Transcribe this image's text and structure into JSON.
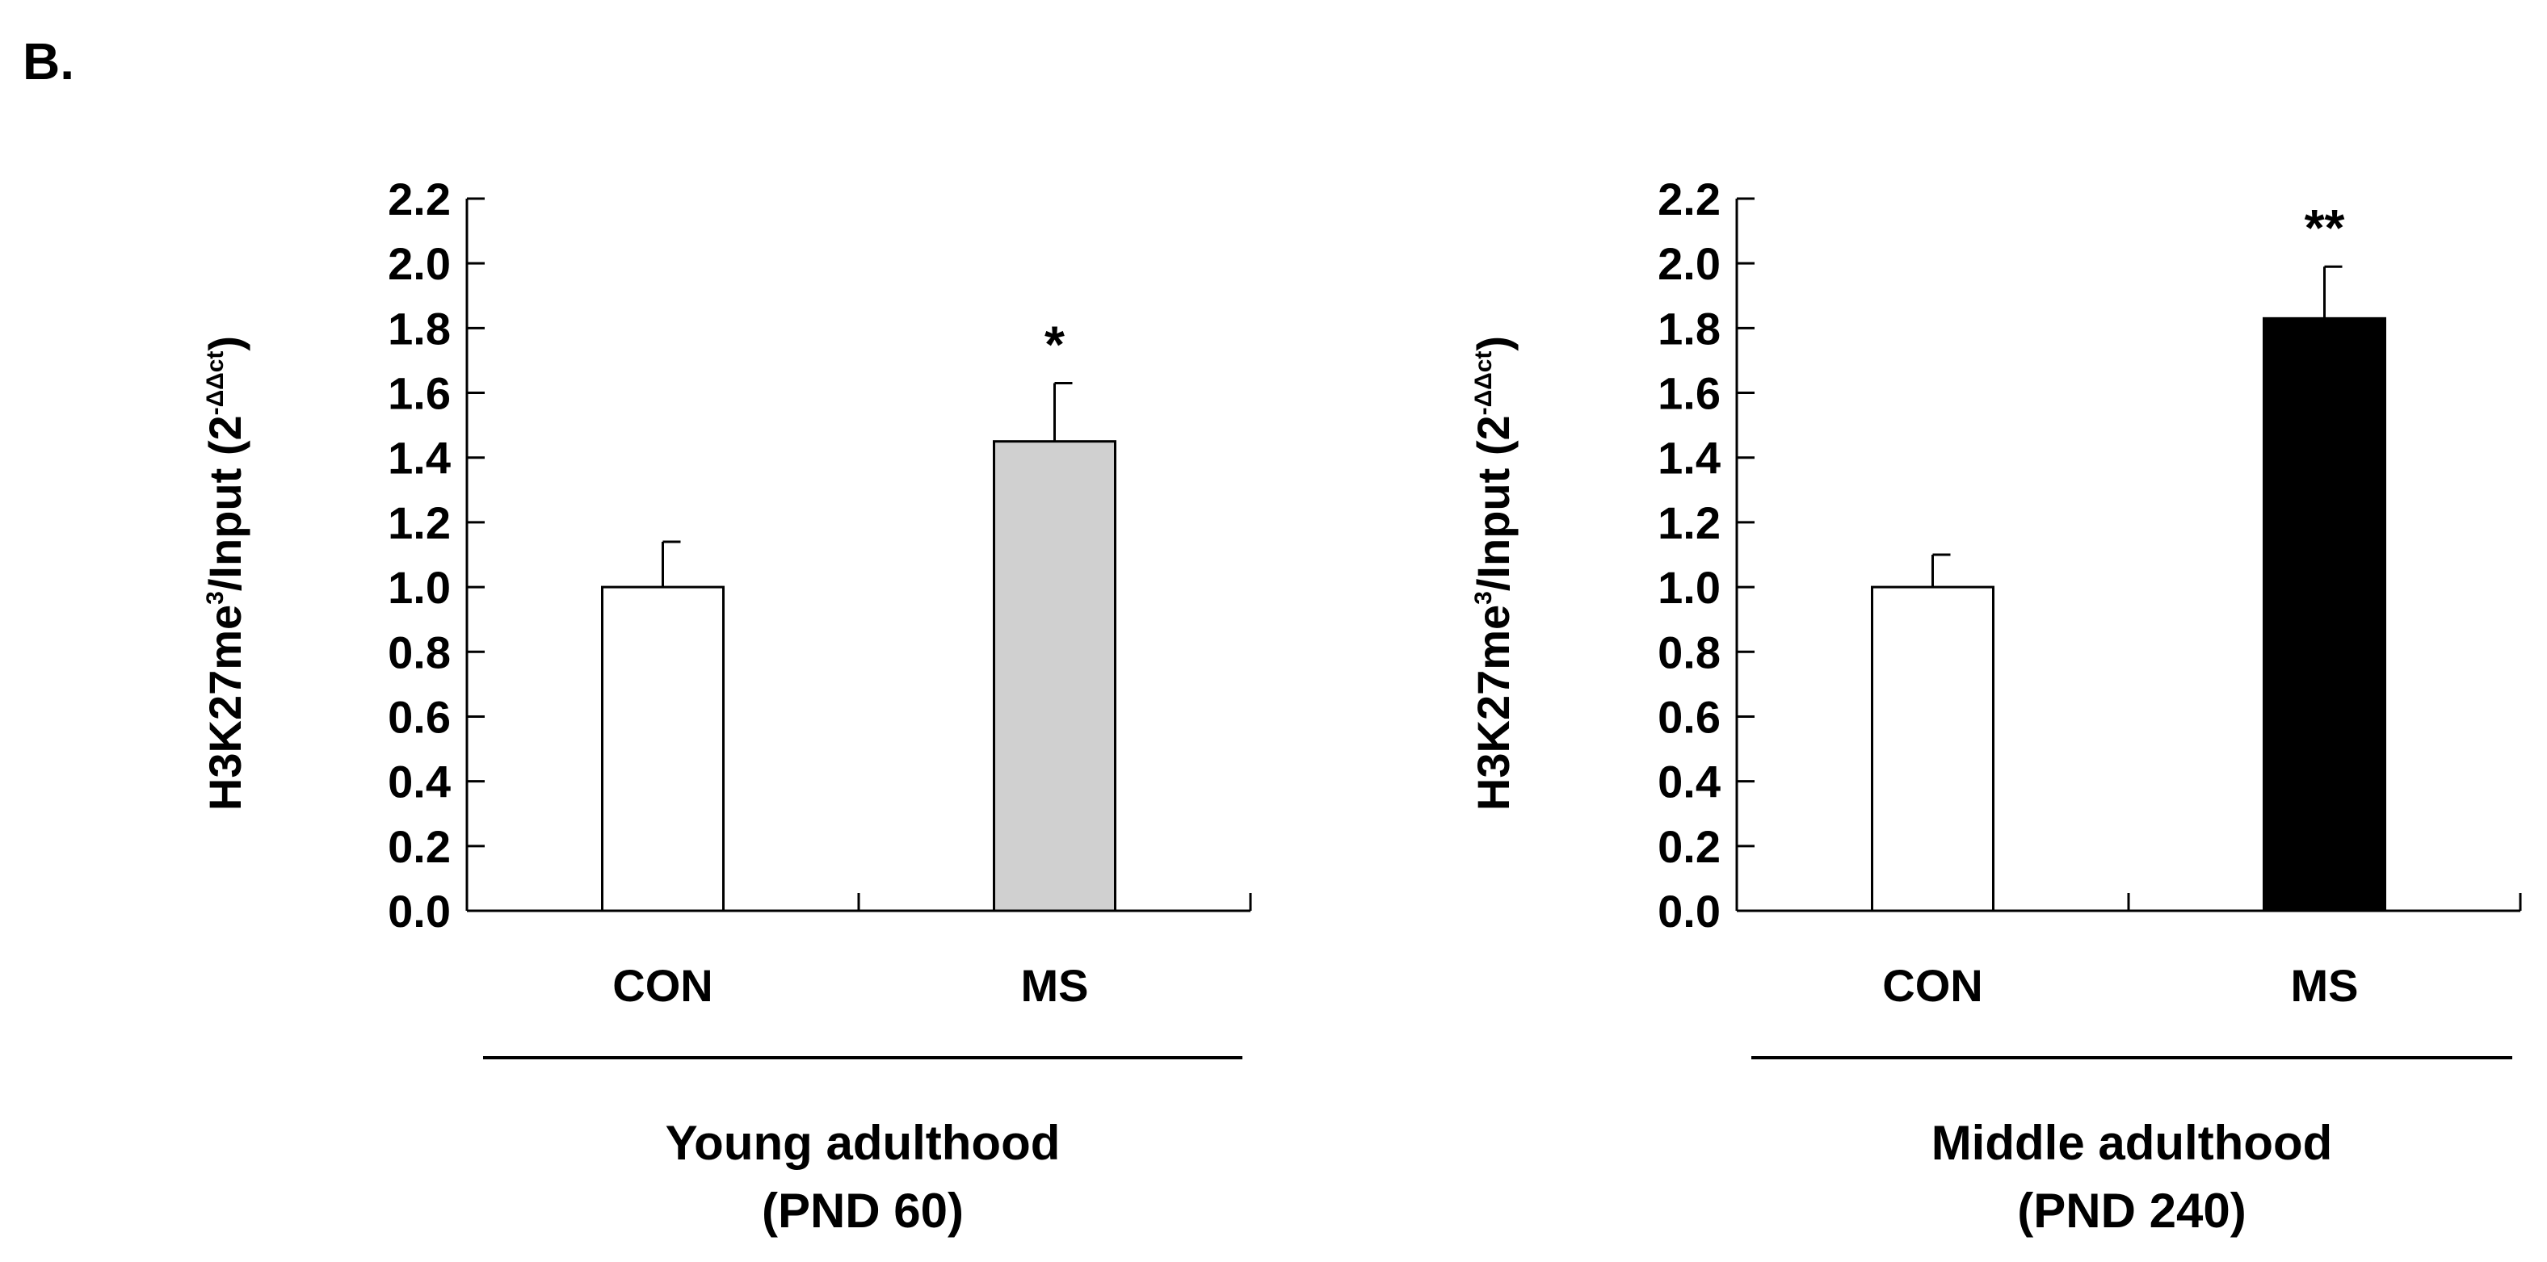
{
  "panel_label": "B.",
  "chart_data": [
    {
      "type": "bar",
      "ylabel": {
        "main": "H3K27me",
        "sup1": "3",
        "mid": "/Input (2",
        "sup2": "-ΔΔct",
        "end": ")"
      },
      "ylim": [
        0,
        2.2
      ],
      "yticks": [
        "0.0",
        "0.2",
        "0.4",
        "0.6",
        "0.8",
        "1.0",
        "1.2",
        "1.4",
        "1.6",
        "1.8",
        "2.0",
        "2.2"
      ],
      "categories": [
        "CON",
        "MS"
      ],
      "values": [
        1.0,
        1.45
      ],
      "errors": [
        0.14,
        0.18
      ],
      "colors": [
        "#ffffff",
        "#d0d0d0"
      ],
      "significance": [
        "",
        "*"
      ],
      "group_label_line1": "Young adulthood",
      "group_label_line2": "(PND 60)"
    },
    {
      "type": "bar",
      "ylabel": {
        "main": "H3K27me",
        "sup1": "3",
        "mid": "/Input (2",
        "sup2": "-ΔΔct",
        "end": ")"
      },
      "ylim": [
        0,
        2.2
      ],
      "yticks": [
        "0.0",
        "0.2",
        "0.4",
        "0.6",
        "0.8",
        "1.0",
        "1.2",
        "1.4",
        "1.6",
        "1.8",
        "2.0",
        "2.2"
      ],
      "categories": [
        "CON",
        "MS"
      ],
      "values": [
        1.0,
        1.83
      ],
      "errors": [
        0.1,
        0.16
      ],
      "colors": [
        "#ffffff",
        "#000000"
      ],
      "significance": [
        "",
        "**"
      ],
      "group_label_line1": "Middle adulthood",
      "group_label_line2": "(PND 240)"
    }
  ]
}
